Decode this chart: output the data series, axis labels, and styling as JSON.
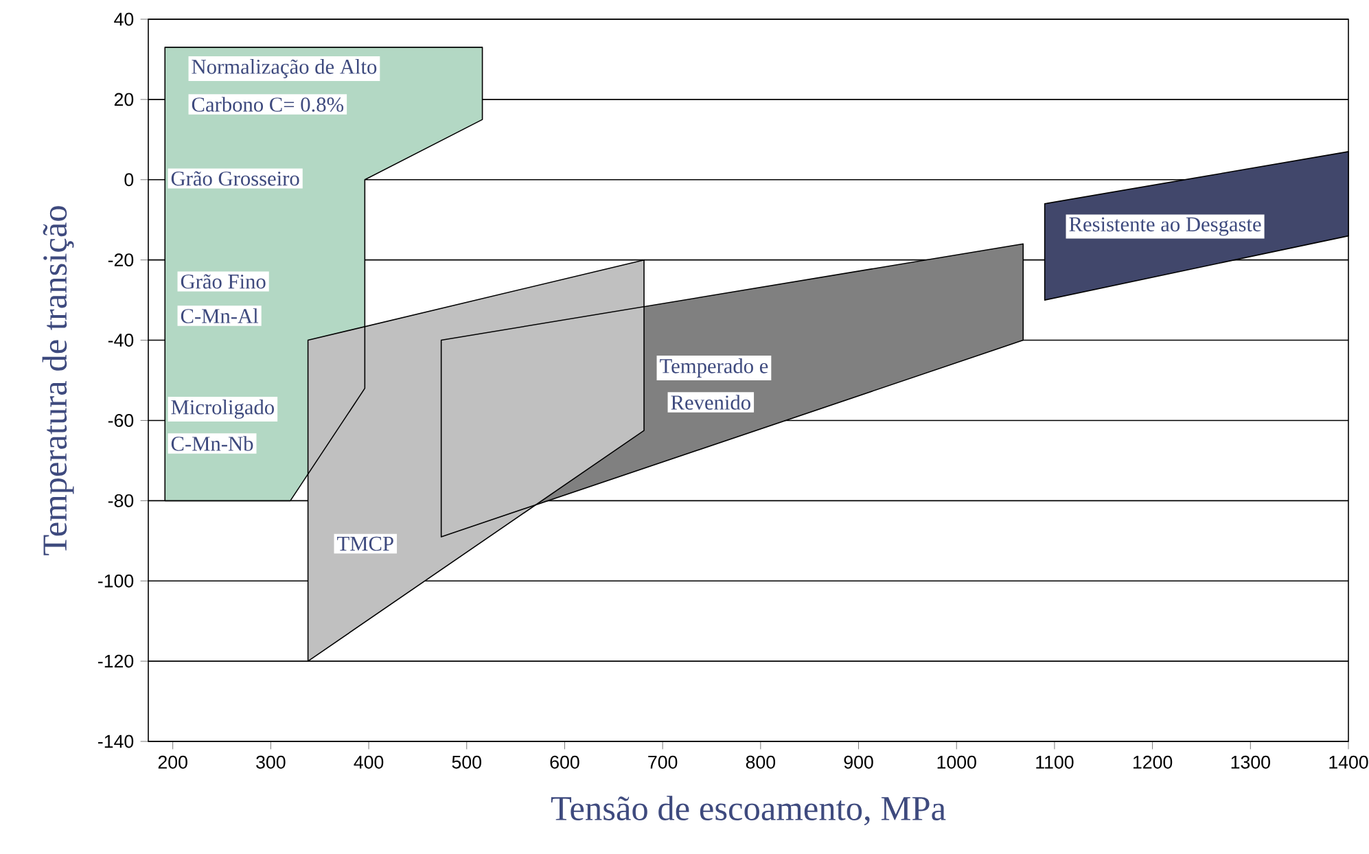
{
  "chart_data": {
    "type": "area",
    "xlabel": "Tensão de escoamento, MPa",
    "ylabel": "Temperatura de transição",
    "xlim": [
      175,
      1400
    ],
    "ylim": [
      -140,
      40
    ],
    "xticks": [
      200,
      300,
      400,
      500,
      600,
      700,
      800,
      900,
      1000,
      1100,
      1200,
      1300,
      1400
    ],
    "yticks": [
      -140,
      -120,
      -100,
      -80,
      -60,
      -40,
      -20,
      0,
      20,
      40
    ],
    "grid": "y",
    "series": [
      {
        "color": "#b3d8c4",
        "x": [
          192,
          516,
          516,
          396,
          396,
          320,
          192
        ],
        "values": [
          33,
          33,
          15,
          0,
          -52,
          -80,
          -80
        ]
      },
      {
        "color": "#808080",
        "x": [
          474,
          1068,
          1068,
          474
        ],
        "values": [
          -40,
          -16,
          -40,
          -89
        ]
      },
      {
        "color": "#c0c0c0",
        "x": [
          338,
          681,
          681,
          338
        ],
        "values": [
          -40,
          -20,
          -62.5,
          -120
        ]
      },
      {
        "color": "#41476b",
        "x": [
          1090,
          1400,
          1400,
          1090
        ],
        "values": [
          -6,
          7,
          -14,
          -30
        ]
      }
    ],
    "annotations": [
      "Normalização de Alto",
      "Carbono C= 0.8%",
      "Grão Grosseiro",
      "Grão Fino",
      "C-Mn-Al",
      "Microligado",
      "C-Mn-Nb",
      "TMCP",
      "Temperado e",
      "Revenido",
      "Resistente ao Desgaste"
    ]
  }
}
